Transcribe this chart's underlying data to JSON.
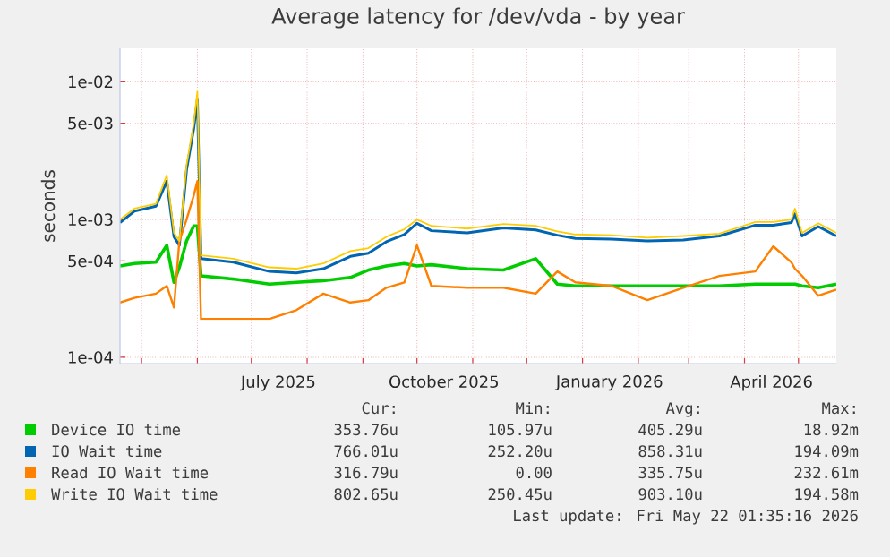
{
  "chart_data": {
    "type": "line",
    "title": "Average latency for /dev/vda - by year",
    "ylabel": "seconds",
    "x": [
      "2025-04-19",
      "2025-04-27",
      "2025-05-09",
      "2025-05-15",
      "2025-05-19",
      "2025-05-22",
      "2025-05-26",
      "2025-05-30",
      "2025-06-01",
      "2025-06-03",
      "2025-06-21",
      "2025-07-11",
      "2025-07-26",
      "2025-08-10",
      "2025-08-25",
      "2025-09-04",
      "2025-09-14",
      "2025-09-24",
      "2025-10-01",
      "2025-10-09",
      "2025-10-29",
      "2025-11-18",
      "2025-12-06",
      "2025-12-18",
      "2025-12-28",
      "2026-01-17",
      "2026-02-06",
      "2026-02-26",
      "2026-03-18",
      "2026-04-07",
      "2026-04-17",
      "2026-04-27",
      "2026-04-29",
      "2026-05-03",
      "2026-05-12",
      "2026-05-22"
    ],
    "series": [
      {
        "name": "Device IO time",
        "color": "#00cc00",
        "values": [
          0.00046,
          0.00048,
          0.00049,
          0.00065,
          0.00035,
          0.00045,
          0.0007,
          0.0009,
          0.0009,
          0.00039,
          0.00037,
          0.00034,
          0.00035,
          0.00036,
          0.00038,
          0.00043,
          0.00046,
          0.00048,
          0.00046,
          0.00047,
          0.00044,
          0.00043,
          0.00052,
          0.00034,
          0.00033,
          0.00033,
          0.00033,
          0.00033,
          0.00033,
          0.00034,
          0.00034,
          0.00034,
          0.00034,
          0.00033,
          0.00032,
          0.00034
        ]
      },
      {
        "name": "IO Wait time",
        "color": "#0066b3",
        "values": [
          0.00095,
          0.00115,
          0.00125,
          0.0019,
          0.00075,
          0.00065,
          0.0023,
          0.0046,
          0.0075,
          0.00052,
          0.00049,
          0.00042,
          0.00041,
          0.00044,
          0.00054,
          0.00057,
          0.00069,
          0.00078,
          0.00094,
          0.00083,
          0.0008,
          0.00087,
          0.00084,
          0.00077,
          0.00073,
          0.00072,
          0.0007,
          0.00071,
          0.00076,
          0.00091,
          0.00091,
          0.00095,
          0.0011,
          0.00076,
          0.00089,
          0.00076
        ]
      },
      {
        "name": "Read IO Wait time",
        "color": "#ff8000",
        "values": [
          0.00025,
          0.00027,
          0.00029,
          0.00033,
          0.00023,
          0.0007,
          0.001,
          0.0015,
          0.0019,
          0.00019,
          0.00019,
          0.00019,
          0.00022,
          0.00029,
          0.00025,
          0.00026,
          0.00032,
          0.00035,
          0.00065,
          0.00033,
          0.00032,
          0.00032,
          0.00029,
          0.00042,
          0.00035,
          0.00033,
          0.00026,
          0.00032,
          0.00039,
          0.00042,
          0.00064,
          0.00049,
          0.00044,
          0.00039,
          0.00028,
          0.00031
        ]
      },
      {
        "name": "Write IO Wait time",
        "color": "#ffcc00",
        "values": [
          0.001,
          0.0012,
          0.0013,
          0.0021,
          0.0008,
          0.0007,
          0.0025,
          0.005,
          0.0085,
          0.00055,
          0.00052,
          0.00045,
          0.00044,
          0.00048,
          0.00059,
          0.00062,
          0.00075,
          0.00085,
          0.001,
          0.0009,
          0.00086,
          0.00093,
          0.0009,
          0.00082,
          0.00078,
          0.00077,
          0.00074,
          0.00076,
          0.00079,
          0.00096,
          0.00096,
          0.001,
          0.0012,
          0.0008,
          0.00094,
          0.0008
        ]
      }
    ],
    "xlim": [
      "2025-04-19",
      "2026-05-22"
    ],
    "xticks": [
      {
        "value": "2025-05-01",
        "label": null
      },
      {
        "value": "2025-06-01",
        "label": null
      },
      {
        "value": "2025-07-01",
        "label": null
      },
      {
        "value": "2025-08-01",
        "label": null
      },
      {
        "value": "2025-09-01",
        "label": null
      },
      {
        "value": "2025-10-01",
        "label": null
      },
      {
        "value": "2025-11-01",
        "label": null
      },
      {
        "value": "2025-12-01",
        "label": null
      },
      {
        "value": "2026-01-01",
        "label": null
      },
      {
        "value": "2026-02-01",
        "label": null
      },
      {
        "value": "2026-03-01",
        "label": null
      },
      {
        "value": "2026-04-01",
        "label": null
      },
      {
        "value": "2026-05-01",
        "label": null
      },
      {
        "value": "2025-07-16",
        "label": "July 2025"
      },
      {
        "value": "2025-10-16",
        "label": "October 2025"
      },
      {
        "value": "2026-01-16",
        "label": "January 2026"
      },
      {
        "value": "2026-04-16",
        "label": "April 2026"
      }
    ],
    "ylim": [
      9e-05,
      0.0175
    ],
    "yticks": [
      {
        "value": 0.0001,
        "label": "1e-04"
      },
      {
        "value": 0.0005,
        "label": "5e-04"
      },
      {
        "value": 0.001,
        "label": "1e-03"
      },
      {
        "value": 0.005,
        "label": "5e-03"
      },
      {
        "value": 0.01,
        "label": "1e-02"
      }
    ],
    "log": "y",
    "grid": true,
    "legend": "bottom",
    "annotations": [
      "Cur:",
      "Min:",
      "Avg:",
      "Max:",
      "353.76u",
      "105.97u",
      "405.29u",
      "18.92m",
      "766.01u",
      "252.20u",
      "858.31u",
      "194.09m",
      "316.79u",
      "0.00",
      "335.75u",
      "232.61m",
      "802.65u",
      "250.45u",
      "903.10u",
      "194.58m",
      "Last update: Fri May 22 01:35:16 2026"
    ]
  }
}
